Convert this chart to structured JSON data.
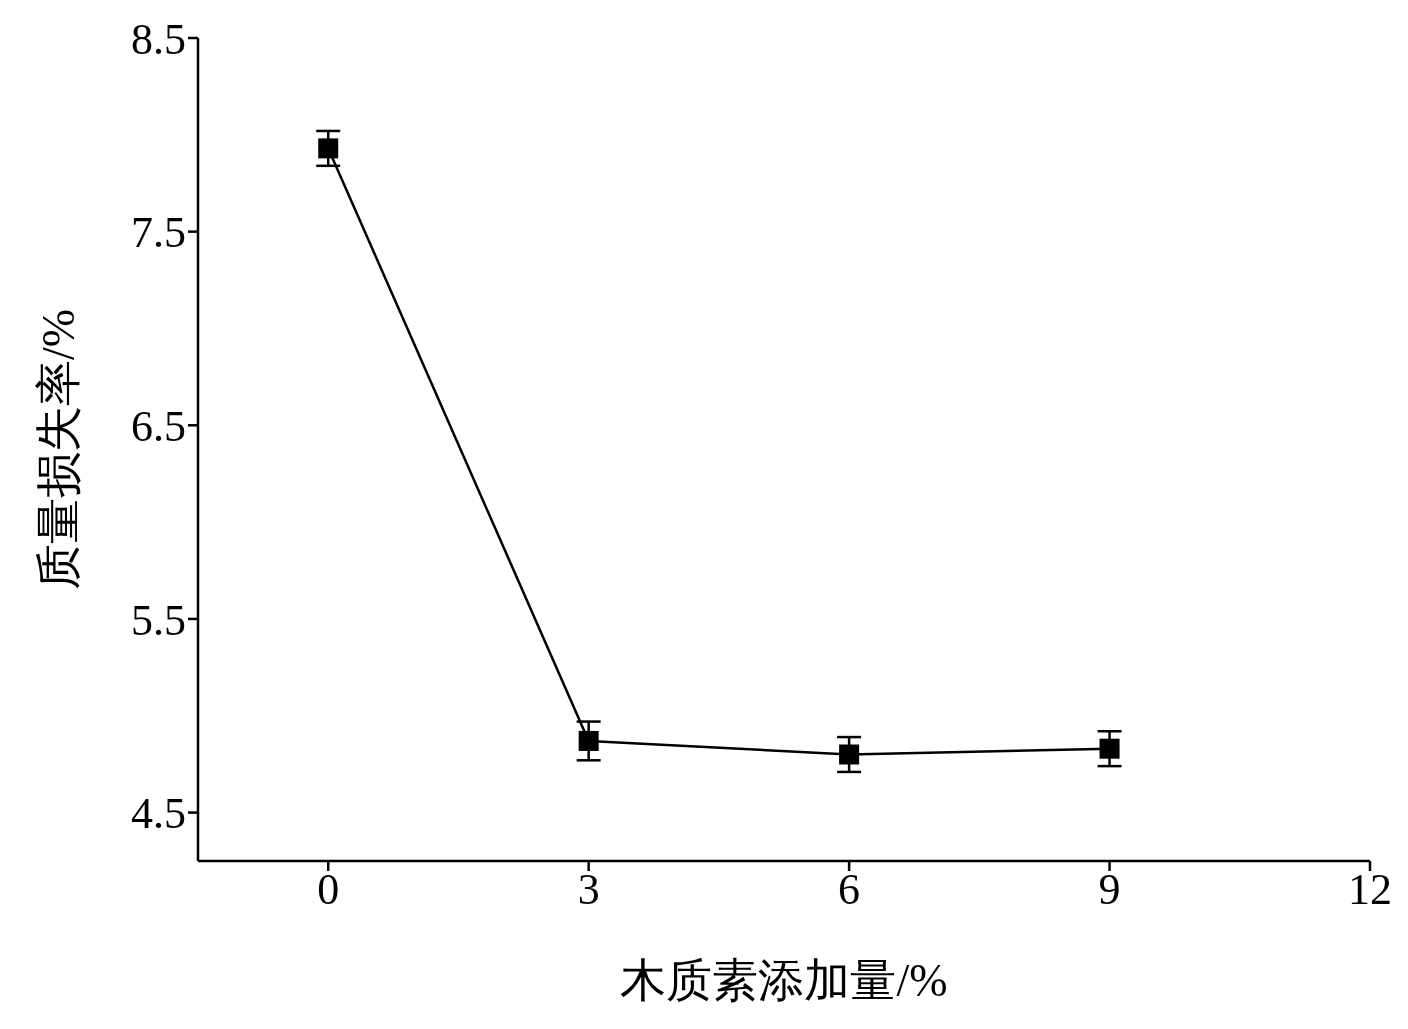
{
  "chart_data": {
    "type": "line",
    "xlabel": "木质素添加量/%",
    "ylabel": "质量损失率/%",
    "x": [
      0,
      3,
      6,
      9
    ],
    "series": [
      {
        "color": "#000000",
        "values": [
          7.93,
          4.87,
          4.8,
          4.83
        ],
        "errors": [
          0.09,
          0.1,
          0.09,
          0.09
        ]
      }
    ],
    "xlim": [
      -1.5,
      12
    ],
    "xticks": [
      0,
      3,
      6,
      9,
      12
    ],
    "ylim": [
      4.25,
      8.5
    ],
    "yticks": [
      4.5,
      5.5,
      6.5,
      7.5,
      8.5
    ],
    "marker": "square",
    "line_style": "solid"
  }
}
